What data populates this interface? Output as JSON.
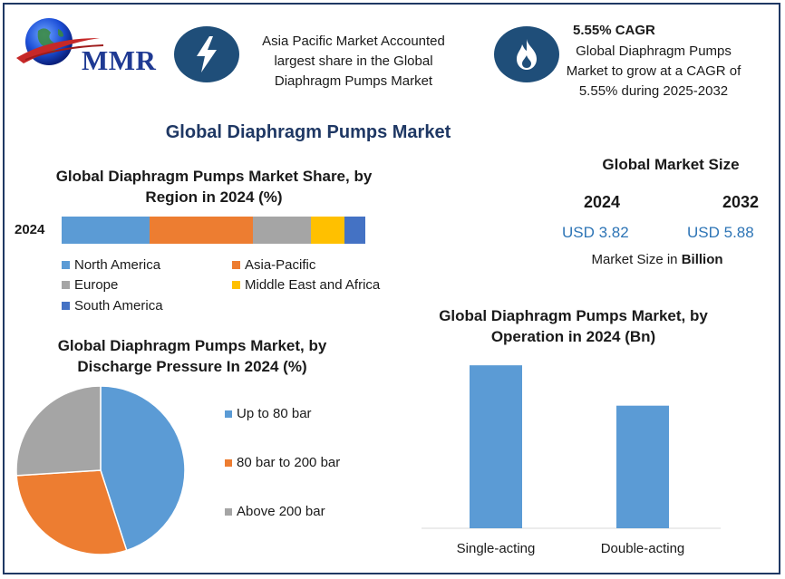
{
  "brand": {
    "logo_text": "MMR"
  },
  "highlights": [
    {
      "icon": "lightning-bolt-icon",
      "text": "Asia Pacific Market Accounted largest share in the Global Diaphragm Pumps Market"
    },
    {
      "icon": "flame-icon",
      "title": "5.55% CAGR",
      "text": "Global Diaphragm Pumps Market to grow at a CAGR of 5.55% during 2025-2032"
    }
  ],
  "main_title": "Global Diaphragm Pumps Market",
  "market_size": {
    "title": "Global Market Size",
    "years": [
      "2024",
      "2032"
    ],
    "values": [
      "USD 3.82",
      "USD 5.88"
    ],
    "unit_prefix": "Market Size in",
    "unit_bold": "Billion"
  },
  "colors": {
    "blue": "#5b9bd5",
    "orange": "#ed7d31",
    "gray": "#a5a5a5",
    "yellow": "#ffc000",
    "dark_blue": "#4472c4",
    "title_navy": "#1f3864",
    "value_blue": "#2e75b6"
  },
  "chart_data": [
    {
      "type": "bar",
      "stacked": true,
      "orientation": "horizontal",
      "title": "Global Diaphragm Pumps Market Share, by Region in 2024 (%)",
      "categories": [
        "2024"
      ],
      "series": [
        {
          "name": "North America",
          "values": [
            29
          ],
          "color": "#5b9bd5"
        },
        {
          "name": "Asia-Pacific",
          "values": [
            34
          ],
          "color": "#ed7d31"
        },
        {
          "name": "Europe",
          "values": [
            19
          ],
          "color": "#a5a5a5"
        },
        {
          "name": "Middle East and Africa",
          "values": [
            11
          ],
          "color": "#ffc000"
        },
        {
          "name": "South America",
          "values": [
            7
          ],
          "color": "#4472c4"
        }
      ],
      "legend": [
        "North America",
        "Asia-Pacific",
        "Europe",
        "Middle East and Africa",
        "South America"
      ],
      "legend_position": "bottom"
    },
    {
      "type": "pie",
      "title": "Global Diaphragm Pumps Market, by Discharge Pressure  In 2024 (%)",
      "labels": [
        "Up to 80 bar",
        "80 bar to 200 bar",
        "Above 200 bar"
      ],
      "values": [
        45,
        29,
        26
      ],
      "colors": [
        "#5b9bd5",
        "#ed7d31",
        "#a5a5a5"
      ],
      "legend_position": "right"
    },
    {
      "type": "bar",
      "title": "Global Diaphragm Pumps Market, by Operation in 2024 (Bn)",
      "categories": [
        "Single-acting",
        "Double-acting"
      ],
      "values": [
        2.18,
        1.64
      ],
      "ylim": [
        0,
        2.4
      ],
      "color": "#5b9bd5",
      "grid": false
    }
  ]
}
